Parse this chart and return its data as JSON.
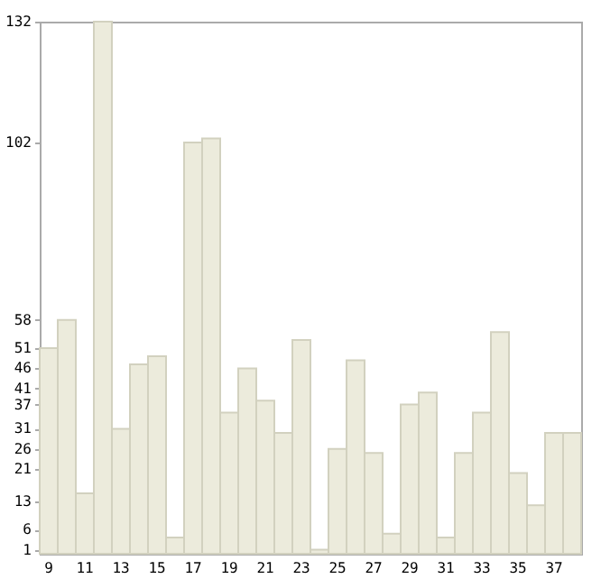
{
  "chart_data": {
    "type": "bar",
    "categories": [
      "9",
      null,
      "11",
      null,
      "13",
      null,
      "15",
      null,
      "17",
      null,
      "19",
      null,
      "21",
      null,
      "23",
      null,
      "25",
      null,
      "27",
      null,
      "29",
      null,
      "31",
      null,
      "33",
      null,
      "35",
      null,
      "37",
      null
    ],
    "values": [
      51,
      58,
      15,
      132,
      31,
      47,
      49,
      4,
      102,
      103,
      35,
      46,
      38,
      30,
      53,
      1,
      26,
      48,
      25,
      5,
      37,
      40,
      4,
      25,
      35,
      55,
      20,
      12,
      30,
      30
    ],
    "color": "#ecebdc",
    "ylim": [
      0,
      132
    ],
    "yticks": [
      1,
      6,
      13,
      21,
      26,
      31,
      37,
      41,
      46,
      51,
      58,
      102,
      132
    ],
    "grid": false
  }
}
